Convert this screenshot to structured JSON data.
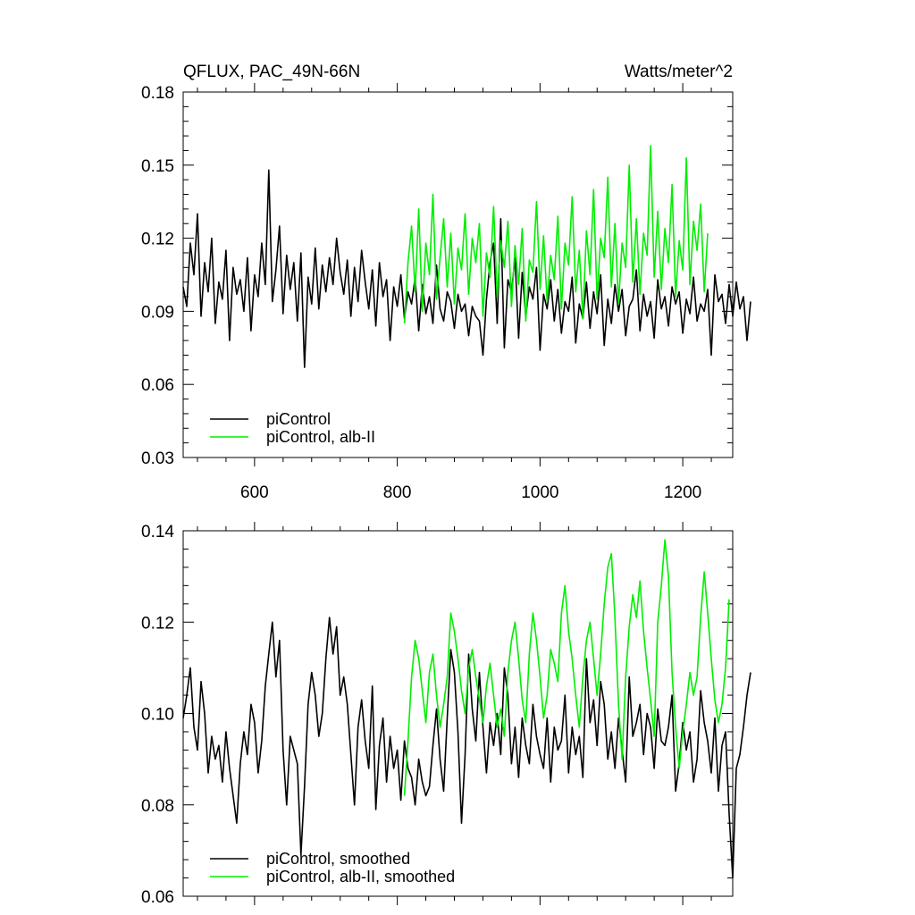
{
  "chart_data": [
    {
      "type": "line",
      "title_left": "QFLUX, PAC_49N-66N",
      "title_right": "Watts/meter^2",
      "xlabel": "",
      "ylabel": "",
      "xlim": [
        500,
        1270
      ],
      "ylim": [
        0.03,
        0.18
      ],
      "x_ticks": [
        600,
        800,
        1000,
        1200
      ],
      "x_tick_labels": [
        "600",
        "800",
        "1000",
        "1200"
      ],
      "y_ticks": [
        0.03,
        0.06,
        0.09,
        0.12,
        0.15,
        0.18
      ],
      "y_tick_labels": [
        "0.03",
        "0.06",
        "0.09",
        "0.12",
        "0.15",
        "0.18"
      ],
      "legend_position": "bottom-left",
      "series": [
        {
          "name": "piControl",
          "color": "#000000",
          "x_start": 500,
          "x_step": 5,
          "values": [
            0.1,
            0.092,
            0.118,
            0.105,
            0.13,
            0.088,
            0.11,
            0.098,
            0.12,
            0.085,
            0.102,
            0.095,
            0.115,
            0.078,
            0.108,
            0.097,
            0.103,
            0.09,
            0.112,
            0.082,
            0.105,
            0.096,
            0.118,
            0.101,
            0.148,
            0.094,
            0.107,
            0.125,
            0.089,
            0.113,
            0.099,
            0.11,
            0.086,
            0.114,
            0.067,
            0.104,
            0.093,
            0.116,
            0.091,
            0.109,
            0.098,
            0.112,
            0.101,
            0.12,
            0.106,
            0.097,
            0.111,
            0.088,
            0.108,
            0.094,
            0.115,
            0.102,
            0.091,
            0.107,
            0.084,
            0.11,
            0.096,
            0.103,
            0.078,
            0.1,
            0.092,
            0.105,
            0.087,
            0.098,
            0.093,
            0.104,
            0.082,
            0.101,
            0.089,
            0.096,
            0.085,
            0.109,
            0.091,
            0.086,
            0.098,
            0.094,
            0.083,
            0.097,
            0.09,
            0.093,
            0.08,
            0.092,
            0.088,
            0.086,
            0.072,
            0.095,
            0.11,
            0.118,
            0.085,
            0.128,
            0.075,
            0.103,
            0.098,
            0.112,
            0.079,
            0.106,
            0.088,
            0.1,
            0.095,
            0.108,
            0.074,
            0.097,
            0.091,
            0.103,
            0.086,
            0.099,
            0.081,
            0.094,
            0.09,
            0.104,
            0.077,
            0.093,
            0.087,
            0.102,
            0.083,
            0.098,
            0.089,
            0.105,
            0.076,
            0.095,
            0.085,
            0.101,
            0.09,
            0.099,
            0.08,
            0.092,
            0.095,
            0.107,
            0.082,
            0.097,
            0.088,
            0.094,
            0.079,
            0.103,
            0.091,
            0.096,
            0.084,
            0.1,
            0.093,
            0.098,
            0.081,
            0.095,
            0.089,
            0.104,
            0.086,
            0.093,
            0.09,
            0.099,
            0.072,
            0.105,
            0.094,
            0.097,
            0.085,
            0.101,
            0.088,
            0.102,
            0.091,
            0.096,
            0.078,
            0.094
          ]
        },
        {
          "name": "piControl, alb-II",
          "color": "#00ee00",
          "x_start": 810,
          "x_step": 5,
          "values": [
            0.085,
            0.11,
            0.125,
            0.098,
            0.132,
            0.09,
            0.118,
            0.105,
            0.138,
            0.095,
            0.112,
            0.128,
            0.1,
            0.122,
            0.093,
            0.116,
            0.107,
            0.13,
            0.097,
            0.12,
            0.11,
            0.126,
            0.088,
            0.114,
            0.104,
            0.133,
            0.096,
            0.119,
            0.108,
            0.127,
            0.092,
            0.117,
            0.101,
            0.124,
            0.086,
            0.111,
            0.106,
            0.135,
            0.099,
            0.121,
            0.094,
            0.113,
            0.103,
            0.129,
            0.091,
            0.118,
            0.109,
            0.137,
            0.098,
            0.115,
            0.087,
            0.123,
            0.105,
            0.14,
            0.095,
            0.12,
            0.112,
            0.145,
            0.1,
            0.126,
            0.093,
            0.118,
            0.108,
            0.15,
            0.102,
            0.128,
            0.097,
            0.122,
            0.113,
            0.158,
            0.104,
            0.131,
            0.099,
            0.124,
            0.11,
            0.142,
            0.096,
            0.119,
            0.107,
            0.153,
            0.101,
            0.127,
            0.115,
            0.134,
            0.098,
            0.122
          ]
        }
      ]
    },
    {
      "type": "line",
      "xlabel": "",
      "ylabel": "",
      "xlim": [
        500,
        1270
      ],
      "ylim": [
        0.06,
        0.14
      ],
      "x_ticks": [
        600,
        800,
        1000,
        1200
      ],
      "y_ticks": [
        0.06,
        0.08,
        0.1,
        0.12,
        0.14
      ],
      "y_tick_labels": [
        "0.06",
        "0.08",
        "0.10",
        "0.12",
        "0.14"
      ],
      "legend_position": "bottom-left",
      "series": [
        {
          "name": "piControl, smoothed",
          "color": "#000000",
          "x_start": 500,
          "x_step": 5,
          "values": [
            0.099,
            0.104,
            0.11,
            0.097,
            0.092,
            0.107,
            0.1,
            0.087,
            0.095,
            0.09,
            0.093,
            0.085,
            0.096,
            0.088,
            0.082,
            0.076,
            0.089,
            0.096,
            0.091,
            0.102,
            0.098,
            0.087,
            0.094,
            0.106,
            0.113,
            0.12,
            0.108,
            0.116,
            0.092,
            0.08,
            0.095,
            0.092,
            0.089,
            0.069,
            0.084,
            0.102,
            0.109,
            0.104,
            0.095,
            0.1,
            0.112,
            0.121,
            0.113,
            0.119,
            0.104,
            0.108,
            0.102,
            0.091,
            0.08,
            0.097,
            0.103,
            0.094,
            0.088,
            0.106,
            0.079,
            0.093,
            0.099,
            0.085,
            0.095,
            0.088,
            0.092,
            0.081,
            0.094,
            0.088,
            0.086,
            0.08,
            0.09,
            0.085,
            0.082,
            0.084,
            0.093,
            0.101,
            0.09,
            0.083,
            0.099,
            0.114,
            0.109,
            0.096,
            0.076,
            0.091,
            0.113,
            0.101,
            0.094,
            0.109,
            0.097,
            0.087,
            0.098,
            0.093,
            0.1,
            0.091,
            0.11,
            0.104,
            0.089,
            0.097,
            0.086,
            0.099,
            0.093,
            0.089,
            0.102,
            0.095,
            0.091,
            0.088,
            0.099,
            0.085,
            0.097,
            0.092,
            0.094,
            0.104,
            0.087,
            0.097,
            0.091,
            0.095,
            0.086,
            0.112,
            0.098,
            0.103,
            0.093,
            0.107,
            0.102,
            0.09,
            0.096,
            0.088,
            0.099,
            0.092,
            0.085,
            0.108,
            0.095,
            0.098,
            0.102,
            0.091,
            0.1,
            0.097,
            0.088,
            0.101,
            0.094,
            0.093,
            0.097,
            0.104,
            0.083,
            0.089,
            0.098,
            0.092,
            0.096,
            0.085,
            0.09,
            0.105,
            0.098,
            0.094,
            0.087,
            0.099,
            0.083,
            0.093,
            0.096,
            0.078,
            0.064,
            0.088,
            0.091,
            0.097,
            0.104,
            0.109
          ]
        },
        {
          "name": "piControl, alb-II, smoothed",
          "color": "#00ee00",
          "x_start": 810,
          "x_step": 5,
          "values": [
            0.082,
            0.094,
            0.108,
            0.116,
            0.112,
            0.105,
            0.098,
            0.109,
            0.113,
            0.104,
            0.097,
            0.102,
            0.108,
            0.122,
            0.118,
            0.112,
            0.105,
            0.1,
            0.11,
            0.114,
            0.108,
            0.103,
            0.098,
            0.106,
            0.111,
            0.104,
            0.097,
            0.101,
            0.095,
            0.109,
            0.116,
            0.12,
            0.112,
            0.103,
            0.098,
            0.113,
            0.122,
            0.116,
            0.108,
            0.099,
            0.104,
            0.114,
            0.111,
            0.107,
            0.122,
            0.128,
            0.118,
            0.112,
            0.104,
            0.097,
            0.108,
            0.116,
            0.12,
            0.112,
            0.104,
            0.113,
            0.124,
            0.132,
            0.135,
            0.121,
            0.102,
            0.09,
            0.108,
            0.119,
            0.126,
            0.121,
            0.129,
            0.118,
            0.11,
            0.103,
            0.095,
            0.12,
            0.128,
            0.138,
            0.13,
            0.109,
            0.097,
            0.088,
            0.096,
            0.102,
            0.109,
            0.104,
            0.108,
            0.121,
            0.131,
            0.122,
            0.112,
            0.103,
            0.098,
            0.102,
            0.11,
            0.125
          ]
        }
      ]
    }
  ]
}
